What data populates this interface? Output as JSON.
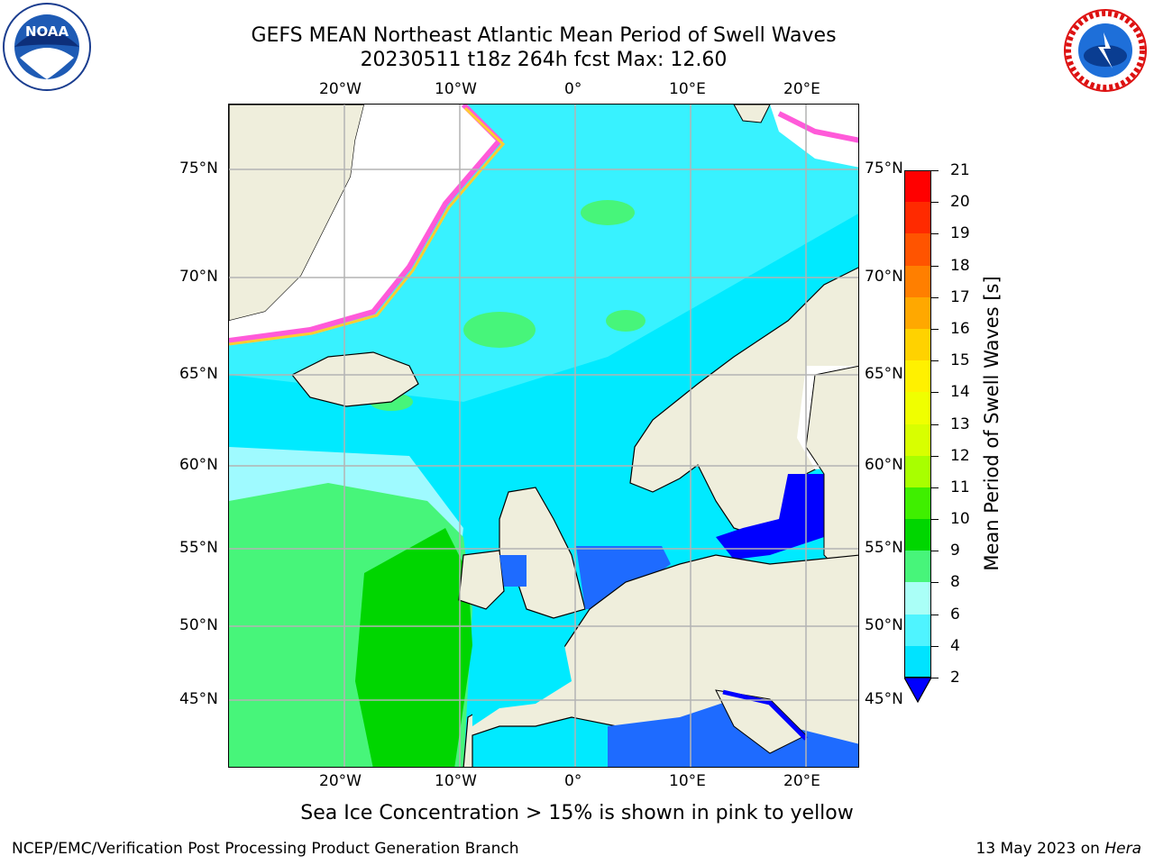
{
  "title": {
    "line1": "GEFS MEAN Northeast Atlantic Mean Period of Swell Waves",
    "line2": "20230511 t18z 264h fcst   Max: 12.60"
  },
  "axes": {
    "lon_ticks": [
      "20°W",
      "10°W",
      "0°",
      "10°E",
      "20°E"
    ],
    "lat_ticks_left": [
      "75°N",
      "70°N",
      "65°N",
      "60°N",
      "55°N",
      "50°N",
      "45°N"
    ],
    "lat_ticks_right": [
      "75°N",
      "70°N",
      "65°N",
      "60°N",
      "55°N",
      "50°N",
      "45°N"
    ]
  },
  "colorbar": {
    "title": "Mean Period of Swell Waves [s]",
    "labels": [
      "21",
      "20",
      "19",
      "18",
      "17",
      "16",
      "15",
      "14",
      "13",
      "12",
      "11",
      "10",
      "9",
      "8",
      "6",
      "4",
      "2"
    ],
    "colors": [
      "#ff0000",
      "#ff2a00",
      "#ff5400",
      "#ff7f00",
      "#ffa800",
      "#ffd200",
      "#fff100",
      "#f0ff00",
      "#d8ff00",
      "#a8ff00",
      "#3fef00",
      "#00d600",
      "#47f57a",
      "#aafff7",
      "#4ff4ff",
      "#00e3ff",
      "#0077ff"
    ],
    "under_color": "#0000ff"
  },
  "map": {
    "land_color": "#efeedc",
    "ocean_color": "#00eaff"
  },
  "caption": "Sea Ice Concentration > 15% is shown in pink to yellow",
  "footer": {
    "left": "NCEP/EMC/Verification Post Processing Product Generation Branch",
    "right_date": "13 May 2023 on ",
    "right_host": "Hera"
  },
  "logos": {
    "noaa_text": "NOAA",
    "nws_text": "NATIONAL WEATHER SERVICE"
  }
}
